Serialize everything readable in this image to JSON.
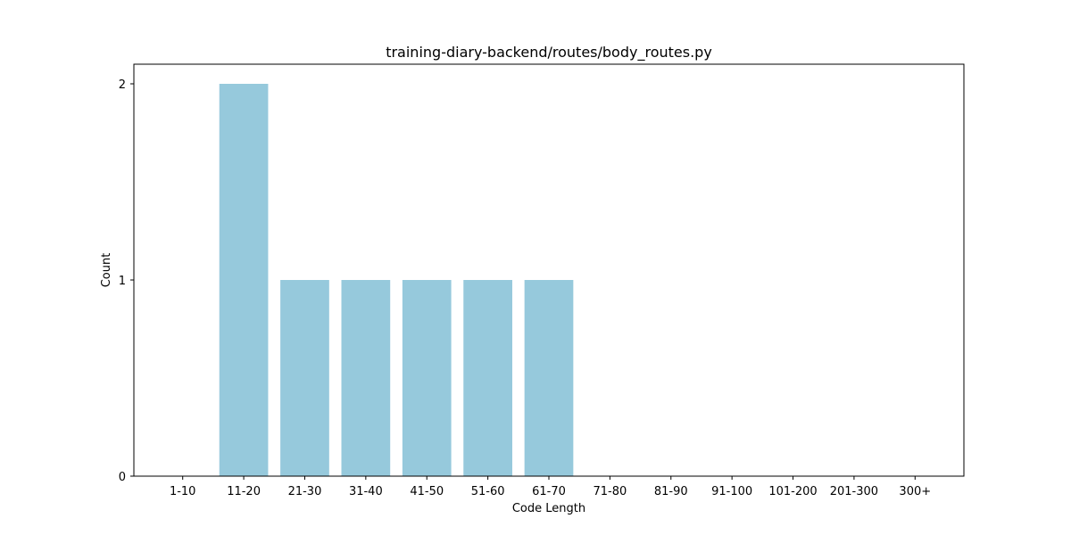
{
  "chart_data": {
    "type": "bar",
    "title": "training-diary-backend/routes/body_routes.py",
    "xlabel": "Code Length",
    "ylabel": "Count",
    "categories": [
      "1-10",
      "11-20",
      "21-30",
      "31-40",
      "41-50",
      "51-60",
      "61-70",
      "71-80",
      "81-90",
      "91-100",
      "101-200",
      "201-300",
      "300+"
    ],
    "values": [
      0,
      2,
      1,
      1,
      1,
      1,
      1,
      0,
      0,
      0,
      0,
      0,
      0
    ],
    "ylim": [
      0,
      2.1
    ],
    "yticks": [
      0,
      1,
      2
    ],
    "bar_color": "#96c9dc",
    "grid": false,
    "legend": "none"
  }
}
